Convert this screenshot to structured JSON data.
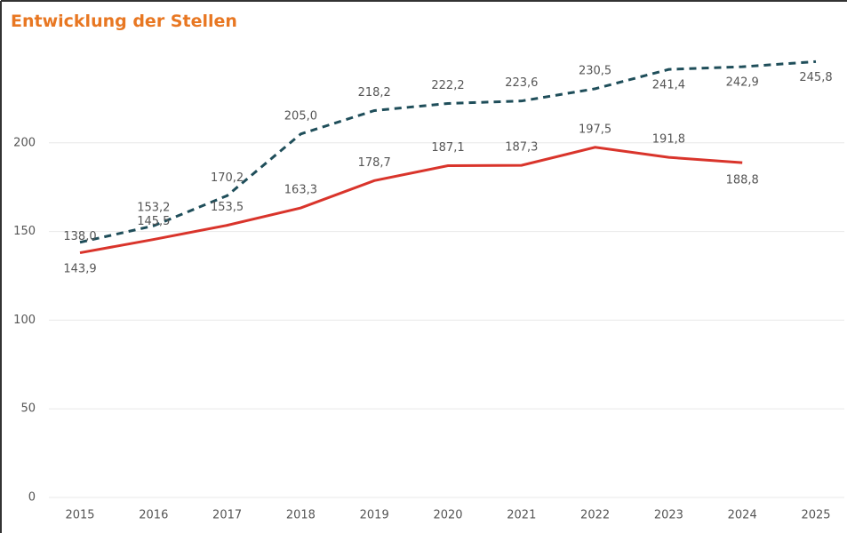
{
  "chart_data": {
    "type": "line",
    "title": "Entwicklung der Stellen",
    "categories": [
      "2015",
      "2016",
      "2017",
      "2018",
      "2019",
      "2020",
      "2021",
      "2022",
      "2023",
      "2024",
      "2025"
    ],
    "series": [
      {
        "color": "#d9342b",
        "dash": false,
        "values": [
          138.0,
          145.5,
          153.5,
          163.3,
          178.7,
          187.1,
          187.3,
          197.5,
          191.8,
          188.8,
          null
        ],
        "value_labels": [
          "138,0",
          "145,5",
          "153,5",
          "163,3",
          "178,7",
          "187,1",
          "187,3",
          "197,5",
          "191,8",
          "188,8",
          null
        ]
      },
      {
        "color": "#1f4e5a",
        "dash": true,
        "values": [
          143.9,
          153.2,
          170.2,
          205.0,
          218.2,
          222.2,
          223.6,
          230.5,
          241.4,
          242.9,
          245.8
        ],
        "value_labels": [
          "143,9",
          "153,2",
          "170,2",
          "205,0",
          "218,2",
          "222,2",
          "223,6",
          "230,5",
          "241,4",
          "242,9",
          "245,8"
        ]
      }
    ],
    "ylim": [
      0,
      255
    ],
    "yticks": [
      0,
      50,
      100,
      150,
      200
    ],
    "grid": true
  }
}
